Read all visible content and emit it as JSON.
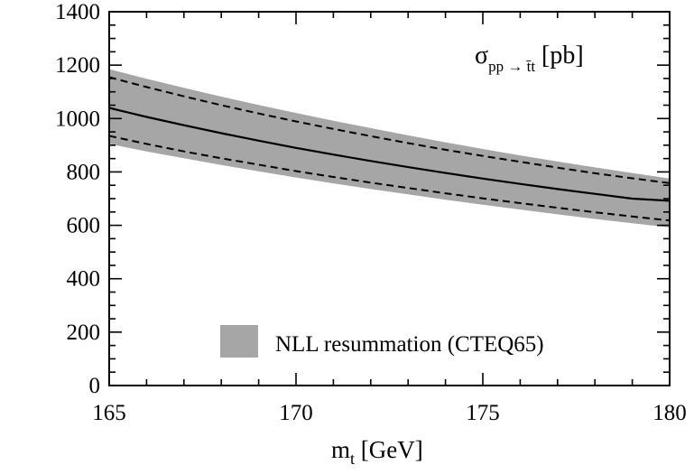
{
  "chart_data": {
    "type": "area",
    "xlabel": {
      "main": "m",
      "sub": "t",
      "unit": " [GeV]"
    },
    "ylabel": "",
    "xlim": [
      165,
      180
    ],
    "ylim": [
      0,
      1400
    ],
    "x_ticks": [
      165,
      170,
      175,
      180
    ],
    "x_tick_labels": [
      "165",
      "170",
      "175",
      "180"
    ],
    "y_ticks": [
      0,
      200,
      400,
      600,
      800,
      1000,
      1200,
      1400
    ],
    "y_tick_labels": [
      "0",
      "200",
      "400",
      "600",
      "800",
      "1000",
      "1200",
      "1400"
    ],
    "annotation": {
      "main": "σ",
      "sub": "pp → t̄t",
      "tail": " [pb]"
    },
    "grid": false,
    "legend_position": "bottom-right",
    "legend": [
      {
        "label": "NLL resummation (CTEQ65)",
        "color": "#a6a6a6"
      }
    ],
    "x": [
      165,
      166,
      167,
      168,
      169,
      170,
      171,
      172,
      173,
      174,
      175,
      176,
      177,
      178,
      179,
      180
    ],
    "series": [
      {
        "role": "band-upper",
        "values": [
          1185,
          1149,
          1115,
          1082,
          1051,
          1021,
          992,
          964,
          937,
          911,
          886,
          862,
          839,
          817,
          796,
          775
        ]
      },
      {
        "role": "band-lower",
        "values": [
          905,
          877,
          851,
          826,
          802,
          779,
          757,
          736,
          716,
          696,
          677,
          659,
          641,
          624,
          608,
          592
        ]
      },
      {
        "role": "dashed-upper",
        "values": [
          1155,
          1118,
          1083,
          1050,
          1019,
          989,
          961,
          934,
          908,
          883,
          860,
          838,
          816,
          795,
          776,
          758
        ]
      },
      {
        "role": "central",
        "values": [
          1040,
          1006,
          975,
          945,
          917,
          890,
          865,
          841,
          818,
          796,
          775,
          755,
          736,
          718,
          700,
          692
        ]
      },
      {
        "role": "dashed-lower",
        "values": [
          935,
          905,
          877,
          851,
          827,
          803,
          781,
          760,
          740,
          720,
          701,
          683,
          666,
          649,
          633,
          618
        ]
      }
    ],
    "colors": {
      "band": "#a6a6a6",
      "line": "#000000"
    }
  }
}
